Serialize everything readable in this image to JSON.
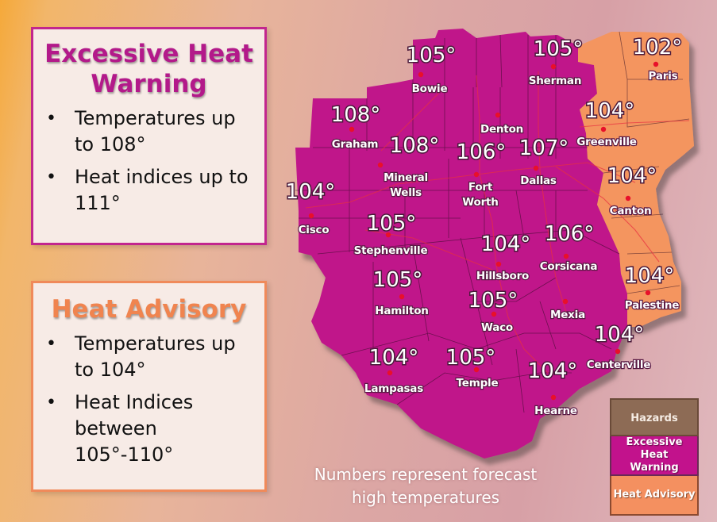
{
  "warning": {
    "title_line1": "Excessive Heat",
    "title_line2": "Warning",
    "bullets": [
      "Temperatures up to 108°",
      "Heat indices up to 111°"
    ],
    "color": "#c2268e"
  },
  "advisory": {
    "title": "Heat Advisory",
    "bullets": [
      "Temperatures up to 104°",
      "Heat Indices between 105°-110°"
    ],
    "color": "#f08a5a"
  },
  "map": {
    "warning_fill": "#c0178a",
    "advisory_fill": "#f4955f",
    "cities": [
      {
        "name": "Bowie",
        "temp": "105°"
      },
      {
        "name": "Sherman",
        "temp": "105°"
      },
      {
        "name": "Paris",
        "temp": "102°"
      },
      {
        "name": "Graham",
        "temp": "108°"
      },
      {
        "name": "Denton",
        "temp": ""
      },
      {
        "name": "Mineral Wells",
        "temp": "108°"
      },
      {
        "name": "Fort Worth",
        "temp": "106°"
      },
      {
        "name": "Dallas",
        "temp": "107°"
      },
      {
        "name": "Greenville",
        "temp": "104°"
      },
      {
        "name": "Cisco",
        "temp": "104°"
      },
      {
        "name": "Canton",
        "temp": "104°"
      },
      {
        "name": "Stephenville",
        "temp": "105°"
      },
      {
        "name": "Hillsboro",
        "temp": "104°"
      },
      {
        "name": "Corsicana",
        "temp": "106°"
      },
      {
        "name": "Palestine",
        "temp": "104°"
      },
      {
        "name": "Hamilton",
        "temp": "105°"
      },
      {
        "name": "Waco",
        "temp": "105°"
      },
      {
        "name": "Mexia",
        "temp": ""
      },
      {
        "name": "Centerville",
        "temp": "104°"
      },
      {
        "name": "Lampasas",
        "temp": "104°"
      },
      {
        "name": "Temple",
        "temp": "105°"
      },
      {
        "name": "Hearne",
        "temp": "104°"
      }
    ]
  },
  "footnote": {
    "line1": "Numbers represent forecast",
    "line2": "high temperatures"
  },
  "legend": {
    "header": "Hazards",
    "warning_label_line1": "Excessive Heat",
    "warning_label_line2": "Warning",
    "advisory_label": "Heat Advisory"
  }
}
